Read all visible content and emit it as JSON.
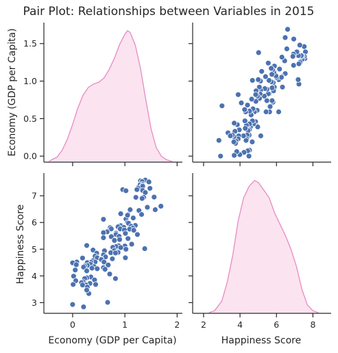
{
  "chart_data": {
    "type": "pairplot",
    "title": "Pair Plot: Relationships between Variables in 2015",
    "variables": [
      "Economy (GDP per Capita)",
      "Happiness Score"
    ],
    "colors": {
      "kde_line": "#e78ac3",
      "kde_fill": "#fbe3ef",
      "scatter": "#4c72b0",
      "scatter_edge": "#ffffff",
      "axis": "#262626"
    },
    "diag_top": {
      "type": "kde",
      "variable": "Economy (GDP per Capita)",
      "xlim": [
        -0.6,
        2.1
      ],
      "ylim": [
        0,
        1.55
      ],
      "curve": [
        [
          -0.45,
          0.0
        ],
        [
          -0.4,
          0.02
        ],
        [
          -0.3,
          0.05
        ],
        [
          -0.2,
          0.13
        ],
        [
          -0.1,
          0.26
        ],
        [
          0.0,
          0.43
        ],
        [
          0.1,
          0.62
        ],
        [
          0.2,
          0.77
        ],
        [
          0.3,
          0.86
        ],
        [
          0.4,
          0.9
        ],
        [
          0.5,
          0.92
        ],
        [
          0.6,
          0.97
        ],
        [
          0.7,
          1.07
        ],
        [
          0.8,
          1.2
        ],
        [
          0.9,
          1.36
        ],
        [
          1.0,
          1.48
        ],
        [
          1.05,
          1.52
        ],
        [
          1.1,
          1.5
        ],
        [
          1.2,
          1.35
        ],
        [
          1.3,
          1.08
        ],
        [
          1.4,
          0.72
        ],
        [
          1.5,
          0.38
        ],
        [
          1.6,
          0.16
        ],
        [
          1.7,
          0.06
        ],
        [
          1.8,
          0.02
        ],
        [
          1.9,
          0.0
        ]
      ]
    },
    "diag_bottom": {
      "type": "kde",
      "variable": "Happiness Score",
      "xlim": [
        1.5,
        9.0
      ],
      "ylim": [
        0,
        0.35
      ],
      "curve": [
        [
          2.3,
          0.0
        ],
        [
          2.6,
          0.005
        ],
        [
          3.0,
          0.03
        ],
        [
          3.3,
          0.08
        ],
        [
          3.6,
          0.15
        ],
        [
          3.9,
          0.24
        ],
        [
          4.2,
          0.3
        ],
        [
          4.5,
          0.33
        ],
        [
          4.8,
          0.345
        ],
        [
          5.0,
          0.34
        ],
        [
          5.3,
          0.32
        ],
        [
          5.6,
          0.3
        ],
        [
          5.9,
          0.26
        ],
        [
          6.2,
          0.23
        ],
        [
          6.5,
          0.2
        ],
        [
          6.8,
          0.165
        ],
        [
          7.1,
          0.12
        ],
        [
          7.4,
          0.06
        ],
        [
          7.7,
          0.02
        ],
        [
          8.0,
          0.005
        ],
        [
          8.3,
          0.0
        ]
      ]
    },
    "axes": {
      "gdp": {
        "label": "Economy (GDP per Capita)",
        "lim": [
          -0.55,
          2.1
        ],
        "ticks": [
          0,
          1,
          2
        ],
        "tick_labels": [
          "0",
          "1",
          "2"
        ]
      },
      "gdp_y": {
        "lim": [
          -0.08,
          1.78
        ],
        "ticks": [
          0.0,
          0.5,
          1.0,
          1.5
        ],
        "tick_labels": [
          "0.0",
          "0.5",
          "1.0",
          "1.5"
        ]
      },
      "happiness": {
        "label": "Happiness Score",
        "lim": [
          1.4,
          9.0
        ],
        "ticks": [
          2,
          4,
          6,
          8
        ],
        "tick_labels": [
          "2",
          "4",
          "6",
          "8"
        ]
      },
      "happiness_y": {
        "lim": [
          2.6,
          7.85
        ],
        "ticks": [
          3,
          4,
          5,
          6,
          7
        ],
        "tick_labels": [
          "3",
          "4",
          "5",
          "6",
          "7"
        ]
      }
    },
    "scatter_points": [
      [
        1.39,
        7.59
      ],
      [
        1.3,
        7.56
      ],
      [
        1.33,
        7.53
      ],
      [
        1.46,
        7.52
      ],
      [
        1.33,
        7.43
      ],
      [
        1.29,
        7.41
      ],
      [
        1.33,
        7.38
      ],
      [
        1.34,
        7.36
      ],
      [
        1.25,
        7.29
      ],
      [
        1.48,
        7.28
      ],
      [
        1.23,
        7.23
      ],
      [
        0.96,
        7.23
      ],
      [
        1.34,
        7.2
      ],
      [
        1.02,
        7.19
      ],
      [
        1.39,
        7.12
      ],
      [
        1.56,
        6.95
      ],
      [
        1.34,
        6.94
      ],
      [
        1.21,
        6.94
      ],
      [
        1.36,
        6.94
      ],
      [
        1.33,
        6.9
      ],
      [
        1.69,
        6.61
      ],
      [
        1.43,
        6.57
      ],
      [
        1.58,
        6.48
      ],
      [
        1.27,
        6.45
      ],
      [
        1.1,
        6.48
      ],
      [
        1.06,
        6.3
      ],
      [
        0.92,
        6.33
      ],
      [
        1.02,
        6.13
      ],
      [
        1.32,
        6.3
      ],
      [
        1.05,
        6.27
      ],
      [
        1.16,
        6.17
      ],
      [
        0.59,
        6.12
      ],
      [
        1.05,
        6.0
      ],
      [
        1.07,
        5.97
      ],
      [
        0.92,
        5.88
      ],
      [
        1.2,
        5.89
      ],
      [
        1.12,
        5.86
      ],
      [
        0.87,
        5.84
      ],
      [
        0.98,
        5.82
      ],
      [
        0.72,
        5.81
      ],
      [
        1.15,
        5.79
      ],
      [
        0.74,
        5.76
      ],
      [
        0.91,
        5.76
      ],
      [
        1.09,
        5.75
      ],
      [
        0.99,
        5.72
      ],
      [
        1.17,
        5.71
      ],
      [
        0.66,
        5.65
      ],
      [
        0.59,
        5.62
      ],
      [
        0.83,
        5.6
      ],
      [
        1.01,
        5.59
      ],
      [
        1.24,
        5.55
      ],
      [
        0.83,
        5.55
      ],
      [
        0.89,
        5.48
      ],
      [
        0.74,
        5.47
      ],
      [
        0.59,
        5.43
      ],
      [
        1.06,
        5.4
      ],
      [
        0.8,
        5.33
      ],
      [
        0.9,
        5.36
      ],
      [
        1.13,
        5.19
      ],
      [
        0.27,
        5.14
      ],
      [
        0.88,
        5.13
      ],
      [
        1.0,
        5.12
      ],
      [
        0.83,
        5.1
      ],
      [
        0.77,
        5.07
      ],
      [
        0.92,
        5.06
      ],
      [
        1.38,
        5.02
      ],
      [
        1.02,
        5.0
      ],
      [
        0.39,
        4.97
      ],
      [
        0.8,
        4.95
      ],
      [
        0.61,
        4.94
      ],
      [
        0.86,
        4.9
      ],
      [
        0.87,
        4.88
      ],
      [
        0.73,
        4.87
      ],
      [
        0.82,
        4.86
      ],
      [
        0.46,
        4.85
      ],
      [
        0.59,
        4.79
      ],
      [
        0.43,
        4.74
      ],
      [
        0.63,
        4.71
      ],
      [
        1.01,
        4.68
      ],
      [
        0.47,
        4.68
      ],
      [
        0.19,
        4.67
      ],
      [
        0.76,
        4.64
      ],
      [
        0.55,
        4.63
      ],
      [
        0.55,
        4.61
      ],
      [
        0.39,
        4.57
      ],
      [
        0.6,
        4.52
      ],
      [
        0.43,
        4.52
      ],
      [
        0.08,
        4.52
      ],
      [
        0.35,
        4.51
      ],
      [
        0.28,
        4.5
      ],
      [
        0.0,
        4.49
      ],
      [
        0.34,
        4.44
      ],
      [
        0.07,
        4.42
      ],
      [
        0.68,
        4.41
      ],
      [
        0.28,
        4.39
      ],
      [
        0.23,
        4.37
      ],
      [
        0.41,
        4.35
      ],
      [
        0.21,
        4.33
      ],
      [
        0.59,
        4.31
      ],
      [
        0.37,
        4.29
      ],
      [
        0.47,
        4.27
      ],
      [
        0.62,
        4.25
      ],
      [
        0.05,
        4.22
      ],
      [
        0.27,
        4.19
      ],
      [
        0.71,
        4.07
      ],
      [
        0.02,
        3.99
      ],
      [
        0.35,
        3.96
      ],
      [
        0.27,
        3.93
      ],
      [
        0.82,
        3.9
      ],
      [
        0.23,
        3.9
      ],
      [
        0.42,
        3.85
      ],
      [
        0.06,
        3.82
      ],
      [
        0.2,
        3.78
      ],
      [
        0.17,
        3.75
      ],
      [
        0.33,
        3.72
      ],
      [
        0.01,
        3.68
      ],
      [
        0.26,
        3.66
      ],
      [
        0.19,
        3.66
      ],
      [
        0.44,
        3.68
      ],
      [
        0.28,
        3.58
      ],
      [
        0.31,
        3.34
      ],
      [
        0.27,
        3.47
      ],
      [
        0.67,
        3.01
      ],
      [
        0.0,
        2.93
      ],
      [
        0.21,
        2.84
      ]
    ]
  }
}
